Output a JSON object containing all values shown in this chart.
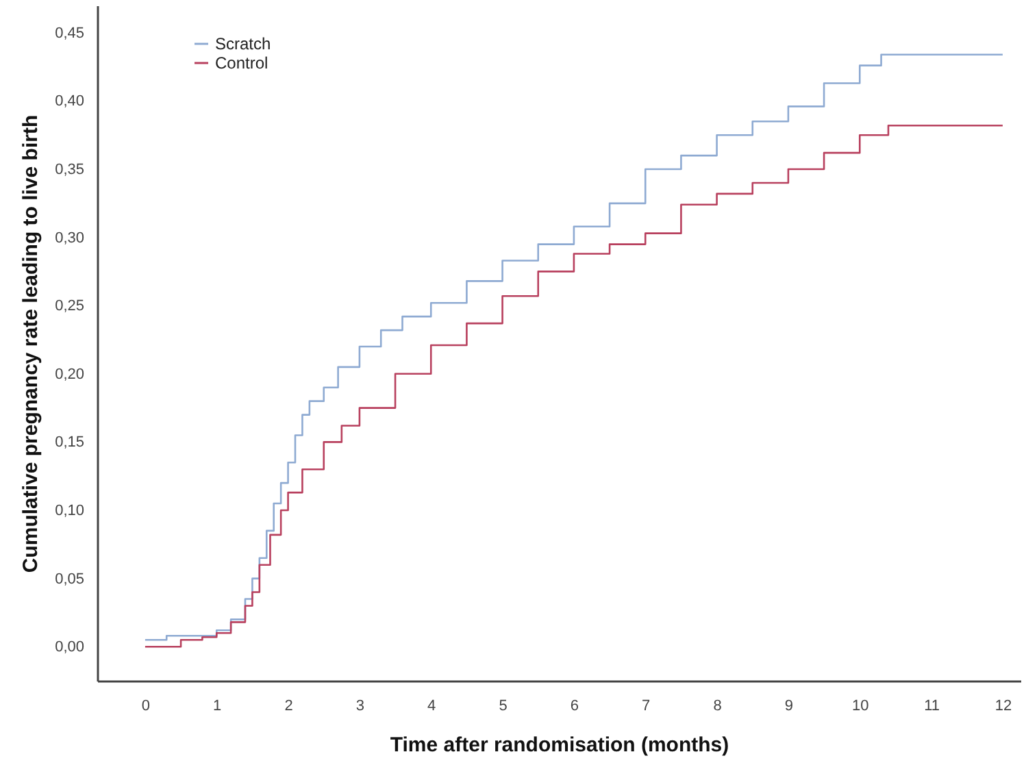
{
  "chart_data": {
    "type": "step",
    "xlabel": "Time after randomisation (months)",
    "ylabel": "Cumulative pregnancy rate leading to live birth",
    "xlim": [
      -0.67,
      12.25
    ],
    "ylim": [
      -0.025,
      0.47
    ],
    "xticks": [
      0,
      1,
      2,
      3,
      4,
      5,
      6,
      7,
      8,
      9,
      10,
      11,
      12
    ],
    "yticks": [
      {
        "value": 0,
        "label": "0,00"
      },
      {
        "value": 0.05,
        "label": "0,05"
      },
      {
        "value": 0.1,
        "label": "0,10"
      },
      {
        "value": 0.15,
        "label": "0,15"
      },
      {
        "value": 0.2,
        "label": "0,20"
      },
      {
        "value": 0.25,
        "label": "0,25"
      },
      {
        "value": 0.3,
        "label": "0,30"
      },
      {
        "value": 0.35,
        "label": "0,35"
      },
      {
        "value": 0.4,
        "label": "0,40"
      },
      {
        "value": 0.45,
        "label": "0,45"
      }
    ],
    "grid": false,
    "legend": "top left",
    "series": [
      {
        "name": "Scratch",
        "color": "#8eaad2",
        "x": [
          0,
          0.3,
          0.8,
          1.0,
          1.2,
          1.4,
          1.5,
          1.6,
          1.7,
          1.8,
          1.9,
          2.0,
          2.1,
          2.2,
          2.3,
          2.5,
          2.7,
          3.0,
          3.3,
          3.6,
          4.0,
          4.5,
          5.0,
          5.5,
          6.0,
          6.5,
          7.0,
          7.5,
          8.0,
          8.5,
          9.0,
          9.5,
          10.0,
          10.3,
          12.0
        ],
        "values": [
          0.005,
          0.008,
          0.008,
          0.012,
          0.02,
          0.035,
          0.05,
          0.065,
          0.085,
          0.105,
          0.12,
          0.135,
          0.155,
          0.17,
          0.18,
          0.19,
          0.205,
          0.22,
          0.232,
          0.242,
          0.252,
          0.268,
          0.283,
          0.295,
          0.308,
          0.325,
          0.35,
          0.36,
          0.375,
          0.385,
          0.396,
          0.413,
          0.426,
          0.434,
          0.434
        ]
      },
      {
        "name": "Control",
        "color": "#b8405e",
        "x": [
          0,
          0.5,
          0.8,
          1.0,
          1.2,
          1.4,
          1.5,
          1.6,
          1.75,
          1.9,
          2.0,
          2.2,
          2.5,
          2.75,
          3.0,
          3.5,
          4.0,
          4.5,
          5.0,
          5.5,
          6.0,
          6.5,
          7.0,
          7.5,
          8.0,
          8.5,
          9.0,
          9.5,
          10.0,
          10.4,
          12.0
        ],
        "values": [
          0.0,
          0.005,
          0.007,
          0.01,
          0.018,
          0.03,
          0.04,
          0.06,
          0.082,
          0.1,
          0.113,
          0.13,
          0.15,
          0.162,
          0.175,
          0.2,
          0.221,
          0.237,
          0.257,
          0.275,
          0.288,
          0.295,
          0.303,
          0.324,
          0.332,
          0.34,
          0.35,
          0.362,
          0.375,
          0.382,
          0.382
        ]
      }
    ]
  }
}
